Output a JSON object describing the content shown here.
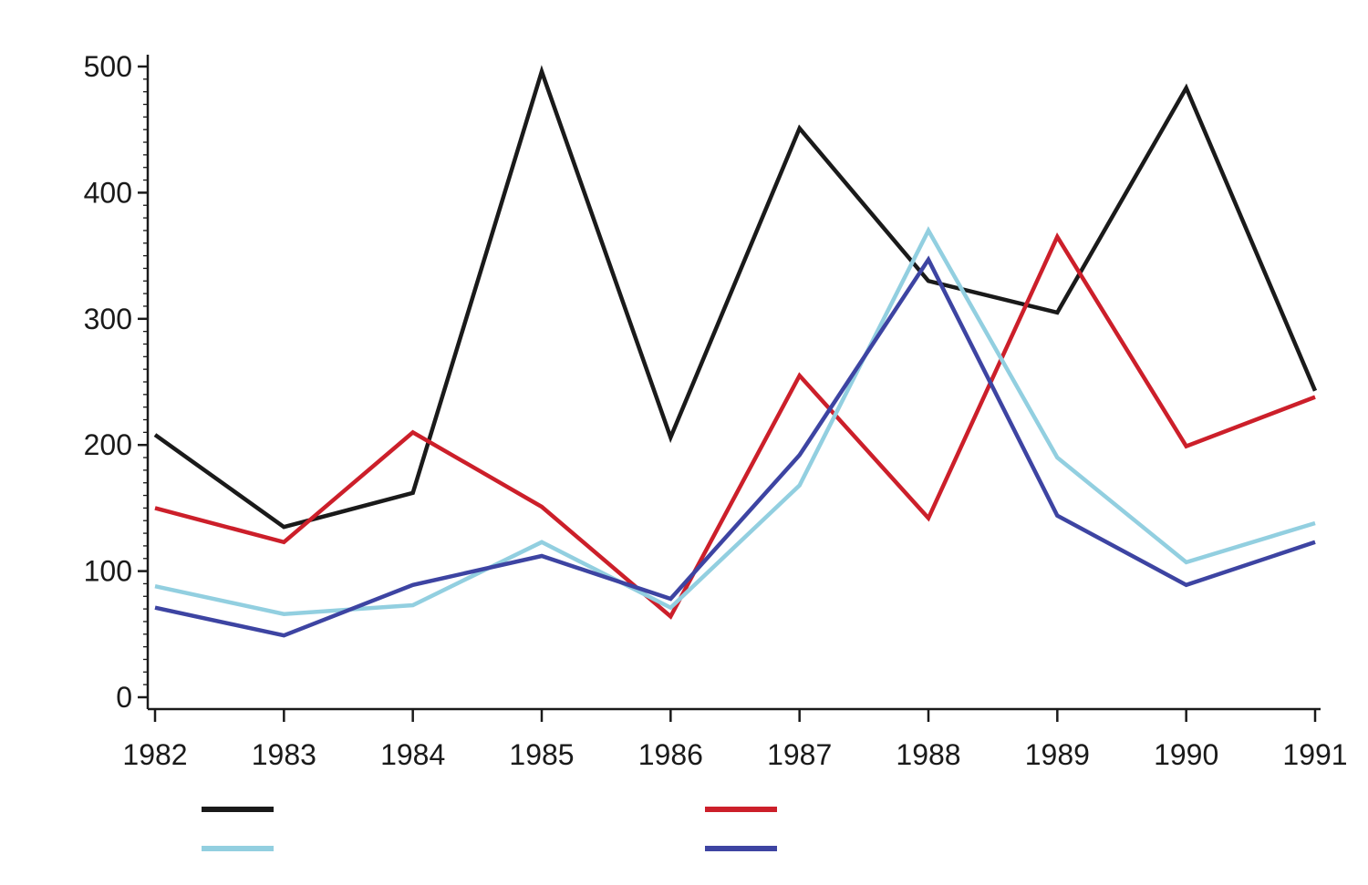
{
  "chart_data": {
    "type": "line",
    "title": "",
    "xlabel": "",
    "ylabel": "",
    "x": [
      1982,
      1983,
      1984,
      1985,
      1986,
      1987,
      1988,
      1989,
      1990,
      1991
    ],
    "xtick_labels": [
      "1982",
      "1983",
      "1984",
      "1985",
      "1986",
      "1987",
      "1988",
      "1989",
      "1990",
      "1991"
    ],
    "ylim": [
      0,
      500
    ],
    "yticks": [
      0,
      100,
      200,
      300,
      400,
      500
    ],
    "ytick_labels": [
      "0",
      "100",
      "200",
      "300",
      "400",
      "500"
    ],
    "y_minor_step": 10,
    "grid": false,
    "legend": {
      "placement": "bottom",
      "columns": 2,
      "labels_printed": false
    },
    "series": [
      {
        "color": "#1a1a1a",
        "values": [
          208,
          135,
          162,
          496,
          206,
          451,
          330,
          305,
          483,
          243
        ]
      },
      {
        "color": "#cc1f2a",
        "values": [
          150,
          123,
          210,
          151,
          64,
          255,
          142,
          365,
          199,
          238
        ]
      },
      {
        "color": "#92cfe0",
        "values": [
          88,
          66,
          73,
          123,
          71,
          168,
          370,
          190,
          107,
          138
        ]
      },
      {
        "color": "#3d44a2",
        "values": [
          71,
          49,
          89,
          112,
          78,
          192,
          347,
          144,
          89,
          123
        ]
      }
    ]
  }
}
